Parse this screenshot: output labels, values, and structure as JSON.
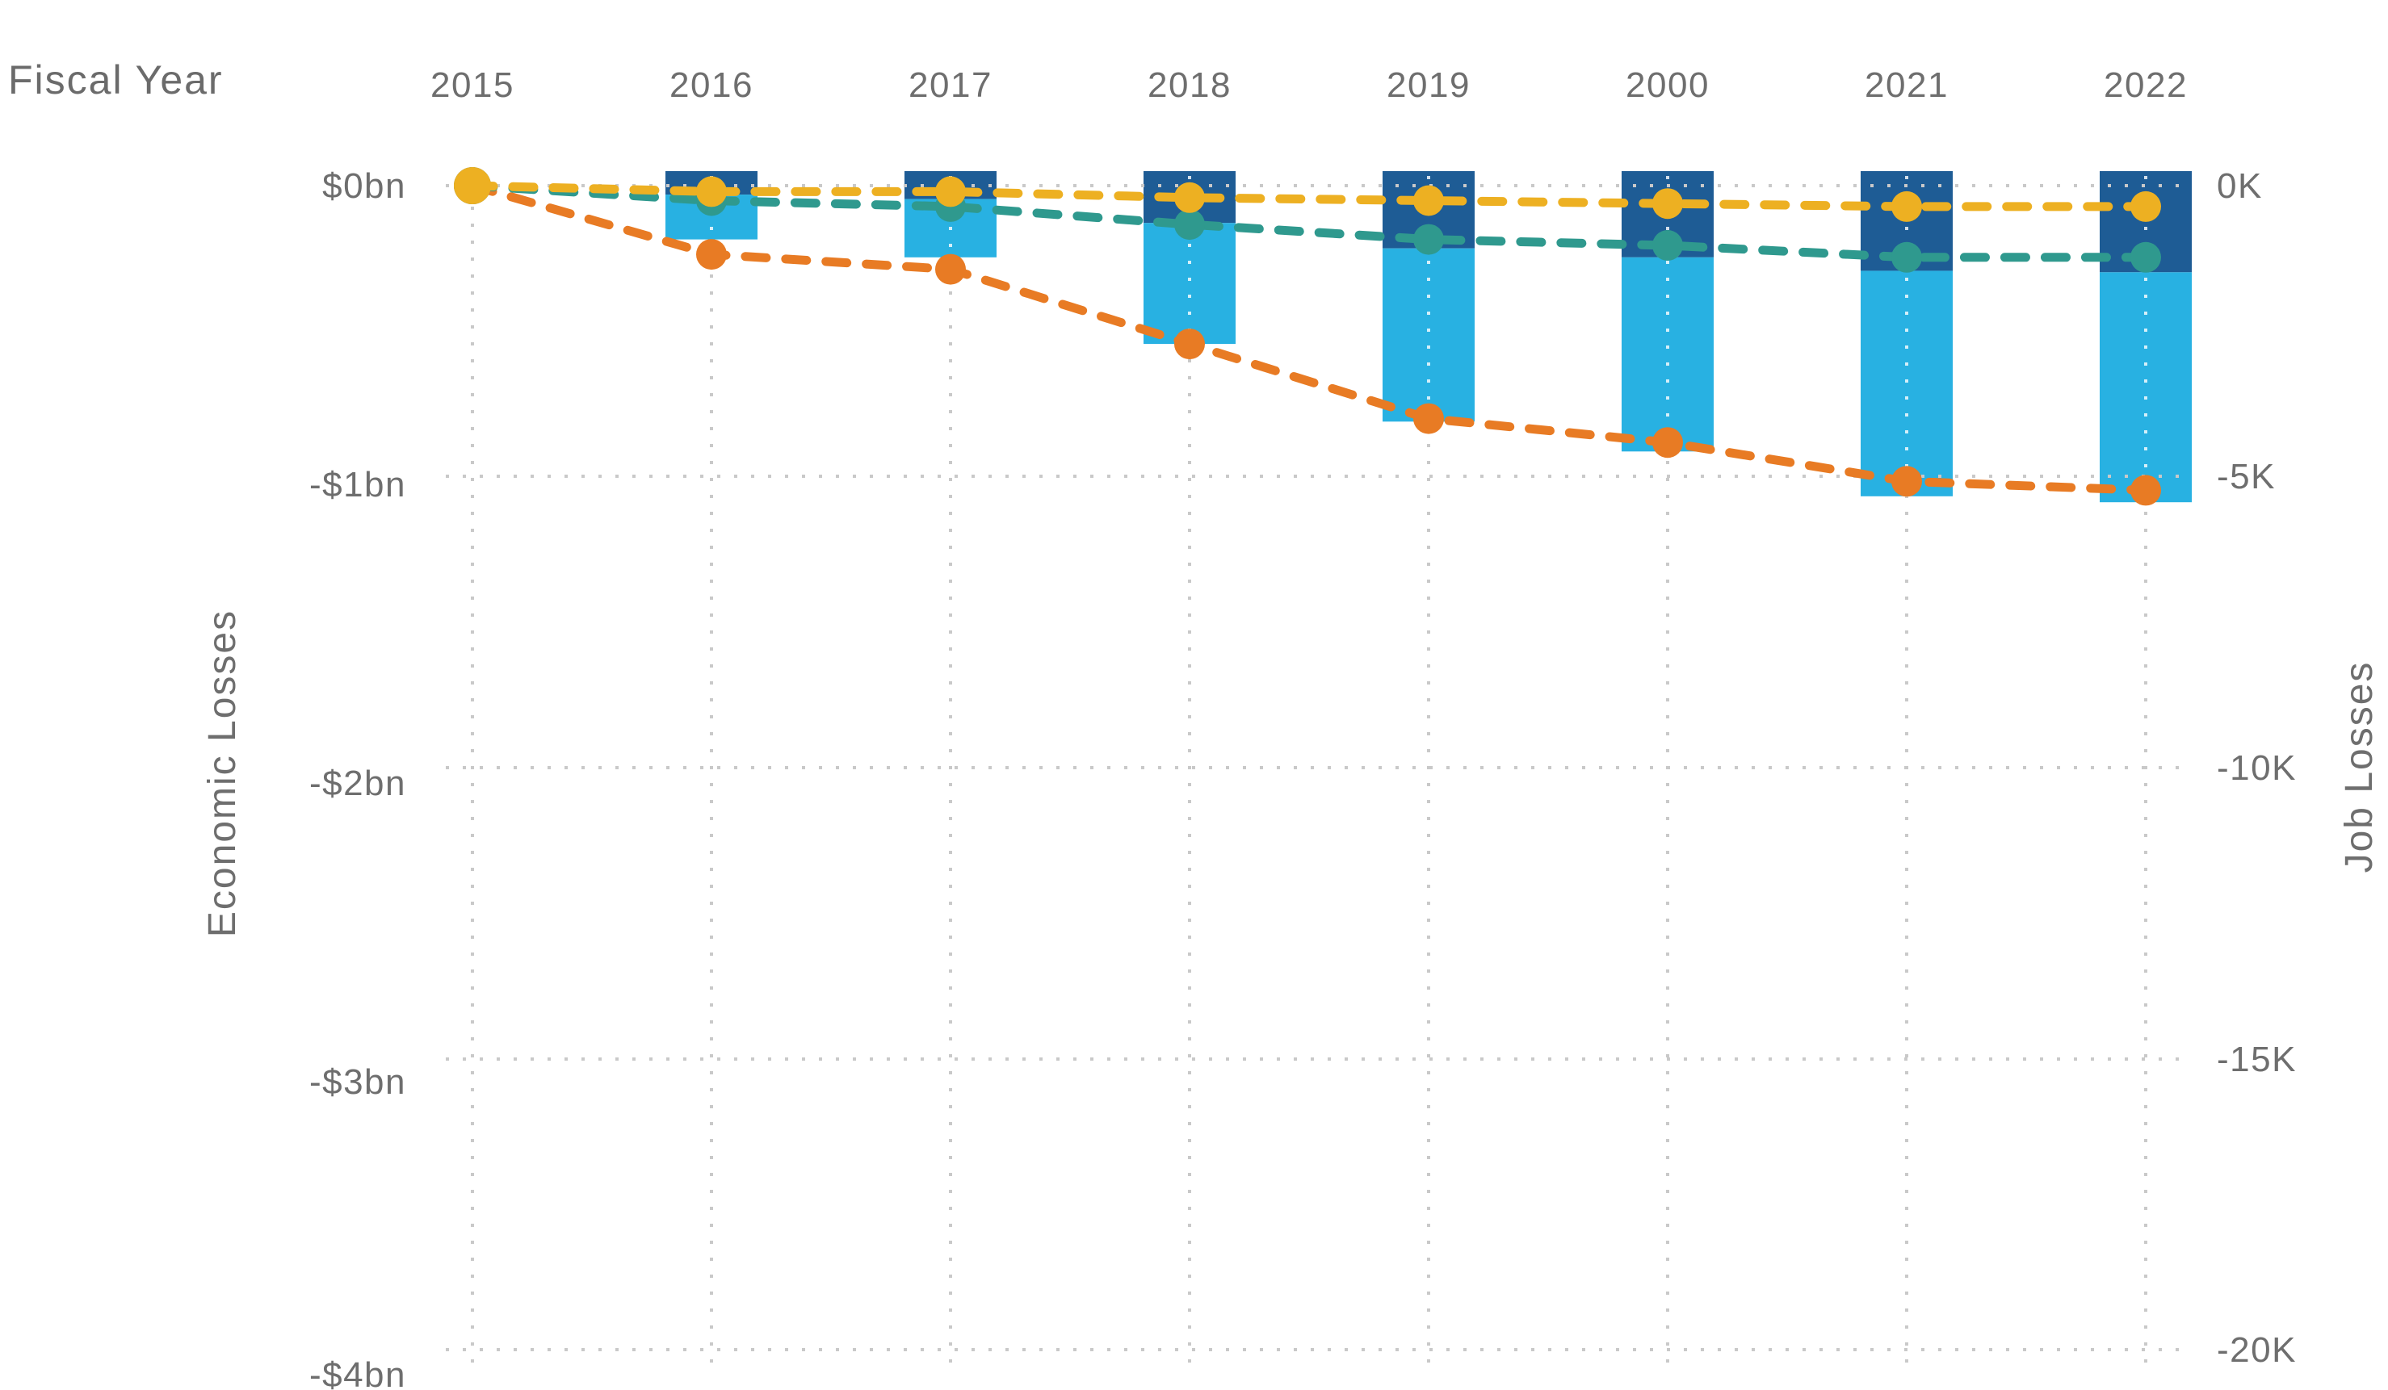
{
  "header": {
    "fiscal_year_label": "Fiscal Year"
  },
  "axes": {
    "top": {
      "categories": [
        "2015",
        "2016",
        "2017",
        "2018",
        "2019",
        "2000",
        "2021",
        "2022"
      ]
    },
    "left": {
      "title": "Economic Losses",
      "tick_labels": [
        "$0bn",
        "-$1bn",
        "-$2bn",
        "-$3bn",
        "-$4bn"
      ],
      "tick_values_bn": [
        0,
        -1,
        -2,
        -3,
        -4
      ]
    },
    "right": {
      "title": "Job Losses",
      "tick_labels": [
        "0K",
        "-5K",
        "-10K",
        "-15K",
        "-20K"
      ],
      "tick_values_k": [
        0,
        -5,
        -10,
        -15,
        -20
      ]
    }
  },
  "chart_data": {
    "type": "combo: stacked hanging bars + 3 dashed marker lines",
    "title": "",
    "categories": [
      "2015",
      "2016",
      "2017",
      "2018",
      "2019",
      "2000",
      "2021",
      "2022"
    ],
    "xlabel": "Fiscal Year",
    "ylabel_left": "Economic Losses",
    "ylabel_right": "Job Losses",
    "ylim_left_bn": [
      0.05,
      -4.05
    ],
    "ylim_right_k": [
      0.25,
      -20.5
    ],
    "grid": "dotted, horizontal at each tick and vertical at each year",
    "legend": "none",
    "bars": {
      "note": "bars hang from top of plot; dark segment on top of light segment; no bar for 2015",
      "years": [
        "2016",
        "2017",
        "2018",
        "2019",
        "2000",
        "2021",
        "2022"
      ],
      "dark_bottom_bn": [
        -0.03,
        -0.045,
        -0.125,
        -0.21,
        -0.24,
        -0.285,
        -0.29
      ],
      "total_bottom_bn": [
        -0.18,
        -0.24,
        -0.53,
        -0.79,
        -0.89,
        -1.04,
        -1.06
      ],
      "dark_bottom_k": [
        -0.15,
        -0.22,
        -0.62,
        -1.05,
        -1.2,
        -1.43,
        -1.45
      ],
      "total_bottom_k": [
        -0.9,
        -1.2,
        -2.65,
        -3.95,
        -4.45,
        -5.2,
        -5.3
      ],
      "dark_color": "#1e5c95",
      "light_color": "#28b1e2"
    },
    "series": [
      {
        "name": "orange-dashed-line",
        "color": "#e87b24",
        "values_bn": [
          0,
          -0.23,
          -0.28,
          -0.53,
          -0.78,
          -0.86,
          -0.99,
          -1.02
        ],
        "values_k": [
          0,
          -1.15,
          -1.4,
          -2.65,
          -3.9,
          -4.3,
          -4.95,
          -5.1
        ]
      },
      {
        "name": "teal-dashed-line",
        "color": "#2f998e",
        "values_bn": [
          0,
          -0.05,
          -0.07,
          -0.13,
          -0.18,
          -0.2,
          -0.24,
          -0.24
        ],
        "values_k": [
          0,
          -0.25,
          -0.35,
          -0.65,
          -0.9,
          -1.0,
          -1.2,
          -1.2
        ]
      },
      {
        "name": "yellow-dashed-line",
        "color": "#edb022",
        "values_bn": [
          0,
          -0.02,
          -0.02,
          -0.04,
          -0.05,
          -0.06,
          -0.07,
          -0.07
        ],
        "values_k": [
          0,
          -0.1,
          -0.1,
          -0.2,
          -0.25,
          -0.3,
          -0.35,
          -0.35
        ]
      }
    ],
    "colors": {
      "grid": "#c9c9c9",
      "text": "#6e6e6e"
    }
  }
}
